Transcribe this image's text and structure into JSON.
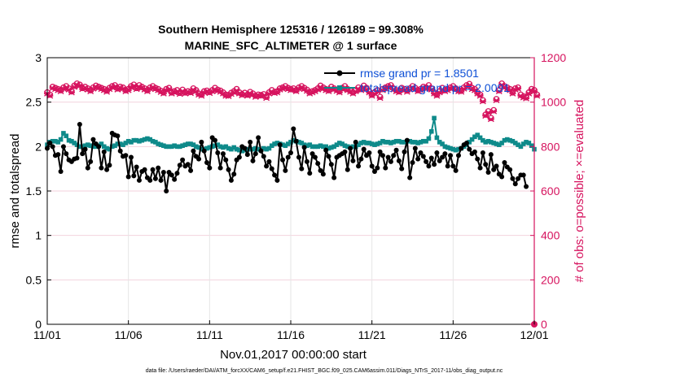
{
  "chart_data": {
    "type": "line",
    "title_line1": "Southern Hemisphere 125316 / 126189 = 99.308%",
    "title_line2": "MARINE_SFC_ALTIMETER @ 1 surface",
    "xlabel": "Nov.01,2017 00:00:00 start",
    "ylabel_left": "rmse and totalspread",
    "ylabel_right": "# of obs: o=possible; ×=evaluated",
    "x_tick_labels": [
      "11/01",
      "11/06",
      "11/11",
      "11/16",
      "11/21",
      "11/26",
      "12/01"
    ],
    "x_ticks_days": [
      0,
      5,
      10,
      15,
      20,
      25,
      30
    ],
    "xlim_days": [
      0,
      30
    ],
    "ylim_left": [
      0,
      3
    ],
    "y_ticks_left": [
      "0",
      "0.5",
      "1",
      "1.5",
      "2",
      "2.5",
      "3"
    ],
    "ylim_right": [
      0,
      1200
    ],
    "y_ticks_right": [
      "0",
      "200",
      "400",
      "600",
      "800",
      "1000",
      "1200"
    ],
    "grid": true,
    "footer": "data file: /Users/raeder/DAI/ATM_forcXX/CAM6_setup/f.e21.FHIST_BGC.f09_025.CAM6assim.011/Diags_NTrS_2017-11/obs_diag_output.nc",
    "colors": {
      "rmse": "#000000",
      "spread": "#0e8a8a",
      "obs": "#d6135e",
      "legend_text": "#0d4fd6"
    },
    "series": [
      {
        "name": "rmse grand pr = 1.8501",
        "axis": "left",
        "values": [
          1.98,
          2.04,
          2.0,
          1.9,
          1.91,
          1.72,
          2.0,
          1.92,
          1.85,
          1.83,
          1.86,
          1.87,
          2.25,
          1.92,
          1.97,
          1.76,
          1.83,
          2.08,
          2.03,
          2.0,
          1.76,
          1.94,
          1.74,
          1.79,
          2.15,
          2.13,
          2.12,
          1.95,
          1.89,
          1.9,
          1.66,
          1.88,
          1.67,
          1.77,
          1.62,
          1.72,
          1.74,
          1.65,
          1.62,
          1.74,
          1.64,
          1.76,
          1.62,
          1.71,
          1.5,
          1.71,
          1.68,
          1.63,
          1.7,
          1.79,
          1.85,
          1.78,
          1.8,
          1.73,
          1.95,
          1.89,
          1.86,
          2.05,
          1.95,
          1.82,
          1.76,
          2.1,
          2.07,
          1.93,
          1.76,
          1.92,
          1.85,
          1.74,
          1.62,
          1.69,
          1.85,
          1.88,
          2.0,
          1.98,
          1.91,
          2.05,
          1.84,
          1.92,
          2.1,
          1.95,
          1.89,
          1.78,
          1.83,
          1.75,
          1.68,
          1.62,
          2.02,
          1.85,
          1.73,
          1.88,
          1.93,
          2.2,
          2.06,
          1.88,
          1.75,
          1.99,
          1.83,
          1.7,
          1.92,
          1.88,
          1.81,
          1.73,
          1.69,
          1.96,
          1.89,
          1.8,
          1.65,
          1.88,
          1.9,
          1.92,
          1.94,
          1.74,
          1.98,
          1.84,
          2.05,
          1.78,
          1.86,
          1.97,
          1.9,
          1.93,
          1.78,
          1.72,
          1.76,
          1.94,
          1.9,
          1.76,
          1.88,
          1.83,
          1.9,
          1.96,
          1.84,
          1.75,
          1.94,
          2.07,
          1.65,
          1.82,
          1.98,
          1.86,
          1.93,
          1.89,
          1.83,
          1.78,
          1.87,
          1.8,
          1.93,
          1.84,
          1.88,
          1.92,
          1.78,
          1.9,
          1.78,
          1.73,
          1.9,
          1.98,
          2.02,
          2.04,
          1.97,
          1.92,
          1.94,
          1.86,
          1.76,
          1.93,
          1.8,
          1.71,
          1.91,
          1.74,
          1.78,
          1.69,
          1.66,
          1.82,
          1.77,
          1.74,
          1.64,
          1.58,
          1.64,
          1.68,
          1.68,
          1.55
        ],
        "note": "values at 6-hour steps starting 11/01 (days = index/6)"
      },
      {
        "name": "totalspread grand pr = 2.0091",
        "axis": "left",
        "values": [
          2.02,
          2.05,
          2.06,
          2.06,
          2.05,
          2.08,
          2.15,
          2.12,
          2.07,
          2.06,
          2.04,
          2.02,
          2.0,
          2.0,
          2.01,
          2.02,
          2.01,
          2.0,
          2.0,
          2.01,
          2.03,
          2.0,
          1.98,
          1.97,
          2.0,
          2.01,
          2.03,
          2.03,
          2.02,
          2.04,
          2.06,
          2.05,
          2.07,
          2.07,
          2.06,
          2.07,
          2.08,
          2.09,
          2.08,
          2.06,
          2.05,
          2.03,
          2.02,
          2.01,
          2.0,
          2.0,
          2.0,
          2.01,
          2.0,
          2.0,
          2.01,
          2.02,
          2.03,
          2.03,
          2.02,
          2.0,
          1.99,
          1.97,
          1.97,
          1.98,
          1.99,
          2.0,
          2.01,
          2.02,
          2.0,
          1.99,
          2.0,
          1.98,
          1.97,
          1.99,
          1.97,
          1.96,
          1.95,
          1.96,
          1.97,
          1.97,
          1.97,
          1.98,
          1.97,
          1.96,
          1.98,
          1.97,
          1.98,
          2.01,
          2.03,
          2.04,
          2.03,
          2.02,
          2.01,
          2.03,
          2.05,
          2.07,
          2.06,
          2.05,
          2.04,
          2.02,
          2.01,
          2.02,
          2.0,
          2.0,
          2.0,
          2.01,
          2.0,
          2.0,
          1.98,
          1.99,
          2.0,
          2.02,
          2.04,
          2.03,
          2.01,
          2.0,
          1.99,
          2.0,
          2.0,
          2.02,
          2.04,
          2.05,
          2.04,
          2.04,
          2.03,
          2.02,
          2.03,
          2.04,
          2.06,
          2.05,
          2.05,
          2.04,
          2.05,
          2.06,
          2.06,
          2.05,
          2.05,
          2.06,
          2.06,
          2.05,
          2.05,
          2.04,
          2.05,
          2.06,
          2.06,
          2.09,
          2.17,
          2.32,
          2.1,
          2.05,
          2.03,
          2.0,
          1.99,
          1.98,
          1.97,
          1.96,
          1.97,
          1.98,
          2.0,
          2.02,
          2.05,
          2.08,
          2.11,
          2.13,
          2.1,
          2.07,
          2.05,
          2.06,
          2.05,
          2.04,
          2.03,
          2.02,
          2.04,
          2.07,
          2.08,
          2.07,
          2.06,
          2.04,
          2.02,
          2.0,
          2.03,
          2.05,
          2.04,
          2.01,
          1.97
        ],
        "note": "values at 6-hour steps starting 11/01"
      },
      {
        "name": "# of obs possible / evaluated",
        "axis": "right",
        "values": [
          1040,
          1030,
          1065,
          1060,
          1055,
          1050,
          1062,
          1068,
          1058,
          1045,
          1070,
          1080,
          1075,
          1060,
          1065,
          1058,
          1050,
          1062,
          1070,
          1065,
          1060,
          1055,
          1048,
          1060,
          1068,
          1072,
          1058,
          1065,
          1062,
          1050,
          1055,
          1068,
          1075,
          1060,
          1072,
          1065,
          1058,
          1050,
          1062,
          1068,
          1060,
          1055,
          1047,
          1040,
          1055,
          1060,
          1040,
          1045,
          1050,
          1038,
          1052,
          1040,
          1045,
          1042,
          1058,
          1050,
          1035,
          1030,
          1045,
          1048,
          1042,
          1050,
          1060,
          1052,
          1048,
          1040,
          1030,
          1028,
          1038,
          1045,
          1055,
          1040,
          1032,
          1038,
          1030,
          1042,
          1035,
          1025,
          1030,
          1028,
          1032,
          1020,
          1040,
          1050,
          1042,
          1045,
          1058,
          1062,
          1068,
          1060,
          1055,
          1058,
          1050,
          1062,
          1068,
          1060,
          1052,
          1040,
          1045,
          1050,
          1058,
          1070,
          1062,
          1055,
          1050,
          1065,
          1058,
          1052,
          1045,
          1060,
          1068,
          1055,
          1048,
          1040,
          1050,
          1062,
          1055,
          1070,
          1060,
          1045,
          1030,
          1040,
          1050,
          1020,
          1055,
          1062,
          1068,
          1072,
          1058,
          1050,
          1045,
          1060,
          1055,
          1048,
          1058,
          1068,
          1060,
          1050,
          1055,
          1065,
          1062,
          1072,
          1058,
          1040,
          1030,
          1045,
          1060,
          1050,
          1055,
          1062,
          1068,
          1058,
          1050,
          1048,
          1062,
          1072,
          1078,
          1060,
          1055,
          1040,
          1030,
          1005,
          940,
          955,
          925,
          960,
          1010,
          1050,
          1080,
          1068,
          1062,
          1055,
          1040,
          1058,
          1062,
          1030,
          1022,
          1018,
          1040,
          1055,
          1050,
          1030
        ],
        "note": "values at 6-hour steps starting 11/01"
      }
    ]
  }
}
